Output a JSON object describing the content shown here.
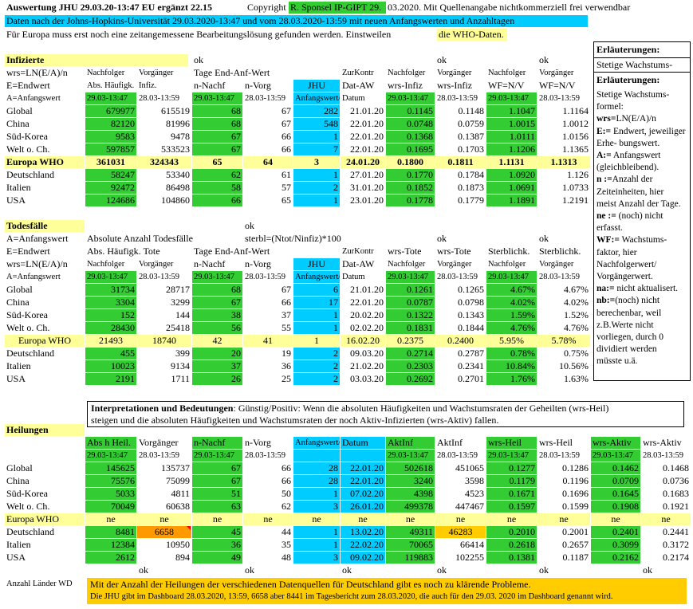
{
  "header": {
    "title": "Auswertung JHU 29.03.20-13:47 EU ergänzt 22.15",
    "copyright_pre": "Copyright",
    "copyright_name": "R. Sponsel IP-GIPT 29.",
    "copyright_post": "03.2020. Mit Quellenangabe nichtkommerziell frei verwendbar",
    "line2": "Daten nach der Johns-Hopkins-Universität 29.03.2020-13:47 und vom 28.03.2020-13:59 mit neuen Anfangswerten und Anzahltagen",
    "line3_pre": "Für Europa muss erst noch eine zeitangemessene Bearbeitungslösung gefunden werden. Einstweilen",
    "line3_hl": "die WHO-Daten."
  },
  "legend": {
    "title": "Erläuterungen:",
    "subtitle": "Stetige Wachstums-",
    "title2": "Erläuterungen:",
    "lines": [
      "Stetige Wachstums-",
      "formel:",
      "wrs=LN(E/A)/n",
      "E:= Endwert, jeweiliger",
      "Erhe- bungswert.",
      "A:= Anfangswert",
      "(gleichbleibend).",
      "n :=Anzahl der",
      "Zeiteinheiten, hier",
      "meist Anzahl der Tage.",
      "ne := (noch) nicht",
      "erfasst.",
      "WF:= Wachstums-",
      "faktor, hier",
      "Nachfolgerwert/",
      "Vorgängerwert.",
      "na:= nicht aktualisert.",
      "nb:=(noch) nicht",
      "berechenbar, weil",
      "z.B.Werte nicht",
      "vorliegen, durch 0",
      "dividiert werden",
      "müsste u.ä."
    ]
  },
  "infizierte": {
    "title": "Infizierte",
    "ok": "ok",
    "h1": [
      "wrs=LN(E/A)/n",
      "Nachfolger",
      "Vorgänger",
      "Tage End-Anf-Wert",
      "ZurKontr",
      "Nachfolger",
      "Vorgänger",
      "Nachfolger",
      "Vorgänger"
    ],
    "h2": [
      "E=Endwert",
      "Abs. Häufigk.",
      "Infiz.",
      "n-Nachf",
      "n-Vorg",
      "JHU",
      "Dat-AW",
      "wrs-Infiz",
      "wrs-Infiz",
      "WF=N/V",
      "WF=N/V"
    ],
    "h3": [
      "A=Anfangswert",
      "29.03-13:47",
      "28.03-13:59",
      "29.03-13:47",
      "28.03-13:59",
      "Anfangswert/",
      "Datum",
      "29.03-13:47",
      "28.03-13:59",
      "29.03-13:47",
      "28.03-13:59"
    ],
    "rows": [
      [
        "Global",
        "679977",
        "615519",
        "68",
        "67",
        "282",
        "21.01.20",
        "0.1145",
        "0.1148",
        "1.1047",
        "1.1164"
      ],
      [
        "China",
        "82120",
        "81996",
        "68",
        "67",
        "548",
        "22.01.20",
        "0.0748",
        "0.0759",
        "1.0015",
        "1.0012"
      ],
      [
        "Süd-Korea",
        "9583",
        "9478",
        "67",
        "66",
        "1",
        "22.01.20",
        "0.1368",
        "0.1387",
        "1.0111",
        "1.0156"
      ],
      [
        "Welt o. Ch.",
        "597857",
        "533523",
        "67",
        "66",
        "7",
        "22.01.20",
        "0.1695",
        "0.1703",
        "1.1206",
        "1.1365"
      ],
      [
        "Europa WHO",
        "361031",
        "324343",
        "65",
        "64",
        "3",
        "24.01.20",
        "0.1800",
        "0.1811",
        "1.1131",
        "1.1313"
      ],
      [
        "Deutschland",
        "58247",
        "53340",
        "62",
        "61",
        "1",
        "27.01.20",
        "0.1770",
        "0.1784",
        "1.0920",
        "1.126"
      ],
      [
        "Italien",
        "92472",
        "86498",
        "58",
        "57",
        "2",
        "31.01.20",
        "0.1852",
        "0.1873",
        "1.0691",
        "1.0733"
      ],
      [
        "USA",
        "124686",
        "104860",
        "66",
        "65",
        "1",
        "23.01.20",
        "0.1778",
        "0.1779",
        "1.1891",
        "1.2191"
      ]
    ]
  },
  "todesfaelle": {
    "title": "Todesfälle",
    "ok": "ok",
    "h0": [
      "A=Anfangswert",
      "Absolute Anzahl Todesfälle",
      "sterbl=(Ntot/Ninfiz)*100"
    ],
    "h1": [
      "E=Endwert",
      "Abs. Häufigk. Tote",
      "Tage End-Anf-Wert",
      "ZurKontr",
      "wrs-Tote",
      "wrs-Tote",
      "Sterblichk.",
      "Sterblichk."
    ],
    "h2": [
      "wrs=LN(E/A)/n",
      "Nachfolger",
      "Vorgänger",
      "n-Nachf",
      "n-Vorg",
      "JHU",
      "Dat-AW",
      "Nachfolger",
      "Vorgänger",
      "Nachfolger",
      "Vorgänger"
    ],
    "h3": [
      "A=Anfangswert",
      "29.03-13:47",
      "28.03-13:59",
      "29.03-13:47",
      "28.03-13:59",
      "Anfangswert/",
      "Datum",
      "29.03-13:47",
      "28.03-13:59",
      "29.03-13:47",
      "28.03-13:59"
    ],
    "rows": [
      [
        "Global",
        "31734",
        "28717",
        "68",
        "67",
        "6",
        "21.01.20",
        "0.1261",
        "0.1265",
        "4.67%",
        "4.67%"
      ],
      [
        "China",
        "3304",
        "3299",
        "67",
        "66",
        "17",
        "22.01.20",
        "0.0787",
        "0.0798",
        "4.02%",
        "4.02%"
      ],
      [
        "Süd-Korea",
        "152",
        "144",
        "38",
        "37",
        "1",
        "20.02.20",
        "0.1322",
        "0.1343",
        "1.59%",
        "1.52%"
      ],
      [
        "Welt o. Ch.",
        "28430",
        "25418",
        "56",
        "55",
        "1",
        "02.02.20",
        "0.1831",
        "0.1844",
        "4.76%",
        "4.76%"
      ],
      [
        "Europa WHO",
        "21493",
        "18740",
        "42",
        "41",
        "1",
        "16.02.20",
        "0.2375",
        "0.2400",
        "5.95%",
        "5.78%"
      ],
      [
        "Deutschland",
        "455",
        "399",
        "20",
        "19",
        "2",
        "09.03.20",
        "0.2714",
        "0.2787",
        "0.78%",
        "0.75%"
      ],
      [
        "Italien",
        "10023",
        "9134",
        "37",
        "36",
        "2",
        "21.02.20",
        "0.2303",
        "0.2341",
        "10.84%",
        "10.56%"
      ],
      [
        "USA",
        "2191",
        "1711",
        "26",
        "25",
        "2",
        "03.03.20",
        "0.2692",
        "0.2701",
        "1.76%",
        "1.63%"
      ]
    ]
  },
  "interpretation": {
    "bold": "Interpretationen und Bedeutungen",
    "text1": ": Günstig/Positiv: Wenn die absoluten Häufigkeiten und Wachstumsraten der Geheilten (wrs-Heil)",
    "text2": "steigen und die absoluten Häufigkeiten und Wachstumsraten der noch Aktiv-Infizierten (wrs-Aktiv) fallen."
  },
  "heilungen": {
    "title": "Heilungen",
    "h1": [
      "Abs h Heil.",
      "Vorgänger",
      "n-Nachf",
      "n-Vorg",
      "Anfangswert/",
      "Datum",
      "AktInf",
      "AktInf",
      "wrs-Heil",
      "wrs-Heil",
      "wrs-Aktiv",
      "wrs-Aktiv"
    ],
    "h2": [
      "29.03-13:47",
      "28.03-13:59",
      "29.03-13:47",
      "28.03-13:59",
      "",
      "",
      "29.03-13:47",
      "28.03-13:59",
      "29.03-13:47",
      "28.03-13:59",
      "29.03-13:47",
      "28.03-13:59"
    ],
    "rows": [
      [
        "Global",
        "145625",
        "135737",
        "67",
        "66",
        "28",
        "22.01.20",
        "502618",
        "451065",
        "0.1277",
        "0.1286",
        "0.1462",
        "0.1468"
      ],
      [
        "China",
        "75576",
        "75099",
        "67",
        "66",
        "28",
        "22.01.20",
        "3240",
        "3598",
        "0.1179",
        "0.1196",
        "0.0709",
        "0.0736"
      ],
      [
        "Süd-Korea",
        "5033",
        "4811",
        "51",
        "50",
        "1",
        "07.02.20",
        "4398",
        "4523",
        "0.1671",
        "0.1696",
        "0.1645",
        "0.1683"
      ],
      [
        "Welt o. Ch.",
        "70049",
        "60638",
        "63",
        "62",
        "3",
        "26.01.20",
        "499378",
        "447467",
        "0.1597",
        "0.1599",
        "0.1908",
        "0.1921"
      ],
      [
        "Europa WHO",
        "ne",
        "ne",
        "ne",
        "ne",
        "ne",
        "ne",
        "ne",
        "ne",
        "ne",
        "ne",
        "ne",
        "ne"
      ],
      [
        "Deutschland",
        "8481",
        "6658",
        "45",
        "44",
        "1",
        "13.02.20",
        "49311",
        "46283",
        "0.2010",
        "0.2001",
        "0.2401",
        "0.2441"
      ],
      [
        "Italien",
        "12384",
        "10950",
        "36",
        "35",
        "1",
        "22.02.20",
        "70065",
        "66414",
        "0.2618",
        "0.2657",
        "0.3099",
        "0.3172"
      ],
      [
        "USA",
        "2612",
        "894",
        "49",
        "48",
        "3",
        "09.02.20",
        "119883",
        "102255",
        "0.1381",
        "0.1187",
        "0.2162",
        "0.2174"
      ]
    ],
    "ok_row": [
      "ok",
      "ok",
      "ok",
      "ok",
      "ok",
      "ok"
    ]
  },
  "footer": {
    "label": "Anzahl Länder WD",
    "note1": "Mit der Anzahl der Heilungen der verschiedenen Datenquellen  für Deutschland gibt es noch zu klärende Probleme.",
    "note2": "Die JHU gibt im Dashboard 28.03.2020, 13:59,  6658 aber 8441 im Tagesbericht zum 28.03.2020, die auch für den 29.03. 2020 im Dashboard genannt wird."
  }
}
